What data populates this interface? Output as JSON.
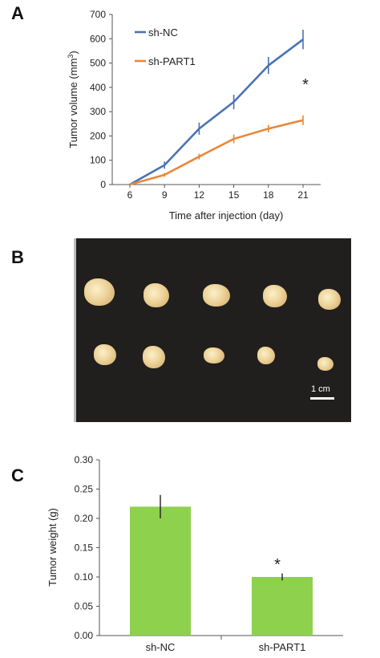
{
  "panels": {
    "a_label": "A",
    "b_label": "B",
    "c_label": "C"
  },
  "chart_data": [
    {
      "type": "line",
      "x": [
        6,
        9,
        12,
        15,
        18,
        21
      ],
      "xticks": [
        "6",
        "9",
        "12",
        "15",
        "18",
        "21"
      ],
      "xlabel": "Time after injection (day)",
      "ylabel": "Tumor volume (mm",
      "ylabel_sup": "3",
      "ylabel_end": ")",
      "ylim": [
        0,
        700
      ],
      "yticks": [
        "0",
        "100",
        "200",
        "300",
        "400",
        "500",
        "600",
        "700"
      ],
      "series": [
        {
          "name": "sh-NC",
          "color": "#4a72b5",
          "values": [
            0,
            80,
            230,
            340,
            490,
            597
          ],
          "errors": [
            0,
            15,
            25,
            30,
            35,
            40
          ]
        },
        {
          "name": "sh-PART1",
          "color": "#e8873a",
          "values": [
            0,
            40,
            115,
            188,
            230,
            265
          ],
          "errors": [
            0,
            8,
            12,
            18,
            15,
            20
          ]
        }
      ],
      "annotation": "*",
      "legend": "top-left"
    },
    {
      "type": "bar",
      "categories": [
        "sh-NC",
        "sh-PART1"
      ],
      "values": [
        0.22,
        0.1
      ],
      "errors": [
        0.02,
        0.006
      ],
      "color": "#8ed14d",
      "ylabel": "Tumor weight (g)",
      "ylim": [
        0,
        0.3
      ],
      "yticks": [
        "0.00",
        "0.05",
        "0.10",
        "0.15",
        "0.20",
        "0.25",
        "0.30"
      ],
      "annotation": "*"
    }
  ],
  "photo": {
    "scale_label": "1 cm",
    "background_color": "#201f1d"
  }
}
